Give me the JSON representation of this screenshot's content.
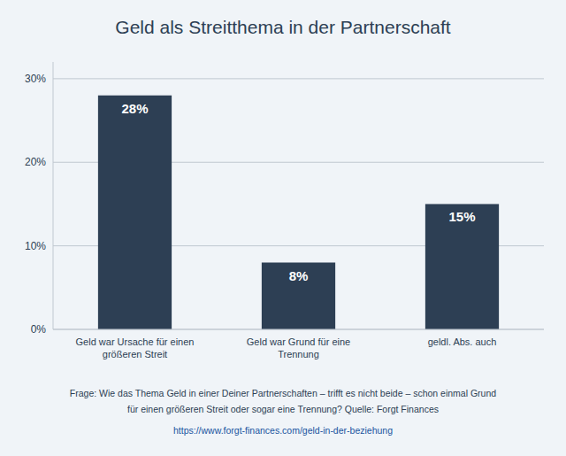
{
  "chart_data": {
    "type": "bar",
    "title": "Geld als Streitthema in der Partnerschaft",
    "categories": [
      "Geld war Ursache für einen\ngrößeren Streit",
      "Geld war Grund für eine\nTrennung",
      "geldl. Abs. auch"
    ],
    "values": [
      28,
      8,
      15
    ],
    "value_labels": [
      "28%",
      "8%",
      "15%"
    ],
    "data_labels": true,
    "color": "#2d3f54",
    "ylim": [
      0,
      32
    ],
    "yticks": [
      {
        "value": 0,
        "label": "0%"
      },
      {
        "value": 10,
        "label": "10%"
      },
      {
        "value": 20,
        "label": "20%"
      },
      {
        "value": 30,
        "label": "30%"
      }
    ],
    "grid": true,
    "annotations": [
      "Frage: Wie das Thema Geld in einer Deiner Partnerschaften – trifft es nicht beide – schon einmal Grund",
      "für einen größeren Streit oder sogar eine Trennung? Quelle: Forgt Finances",
      "https://www.forgt-finances.com/geld-in-der-beziehung"
    ]
  }
}
